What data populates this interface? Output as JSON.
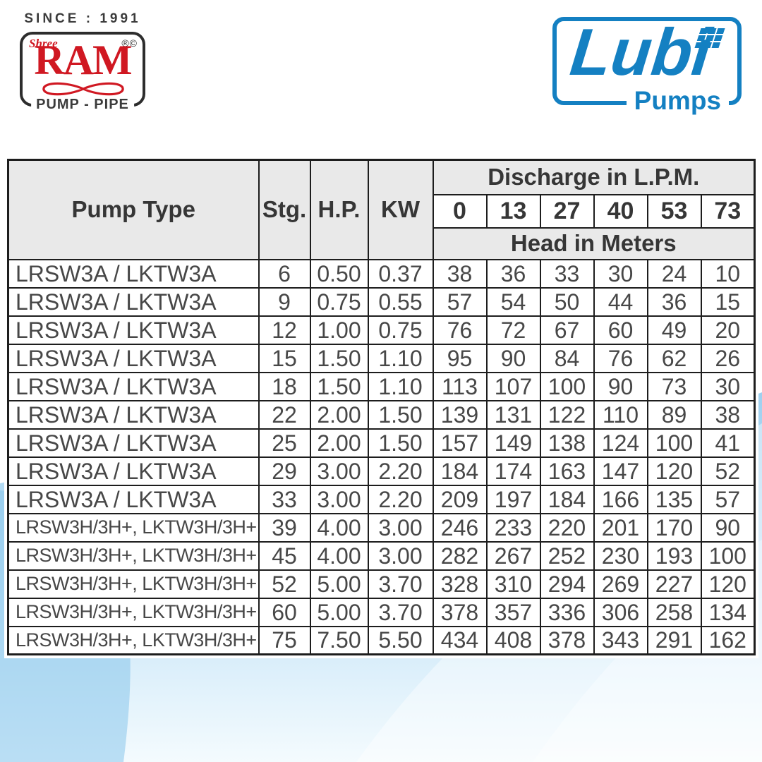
{
  "branding": {
    "ram": {
      "since": "SINCE : 1991",
      "shree": "Shree",
      "name": "RAM",
      "marks": "®©",
      "tagline": "PUMP - PIPE",
      "brand_red": "#d01822",
      "text_dark": "#3b3b3b"
    },
    "lubi": {
      "name": "Lubi",
      "subtitle": "Pumps",
      "brand_blue": "#1480c2"
    }
  },
  "table": {
    "headers": {
      "pump_type": "Pump Type",
      "stg": "Stg.",
      "hp": "H.P.",
      "kw": "KW",
      "discharge": "Discharge in L.P.M.",
      "head": "Head in Meters"
    },
    "discharge_values": [
      "0",
      "13",
      "27",
      "40",
      "53",
      "73"
    ],
    "rows": [
      {
        "pump": "LRSW3A / LKTW3A",
        "stg": "6",
        "hp": "0.50",
        "kw": "0.37",
        "heads": [
          "38",
          "36",
          "33",
          "30",
          "24",
          "10"
        ]
      },
      {
        "pump": "LRSW3A / LKTW3A",
        "stg": "9",
        "hp": "0.75",
        "kw": "0.55",
        "heads": [
          "57",
          "54",
          "50",
          "44",
          "36",
          "15"
        ]
      },
      {
        "pump": "LRSW3A / LKTW3A",
        "stg": "12",
        "hp": "1.00",
        "kw": "0.75",
        "heads": [
          "76",
          "72",
          "67",
          "60",
          "49",
          "20"
        ]
      },
      {
        "pump": "LRSW3A / LKTW3A",
        "stg": "15",
        "hp": "1.50",
        "kw": "1.10",
        "heads": [
          "95",
          "90",
          "84",
          "76",
          "62",
          "26"
        ]
      },
      {
        "pump": "LRSW3A / LKTW3A",
        "stg": "18",
        "hp": "1.50",
        "kw": "1.10",
        "heads": [
          "113",
          "107",
          "100",
          "90",
          "73",
          "30"
        ]
      },
      {
        "pump": "LRSW3A / LKTW3A",
        "stg": "22",
        "hp": "2.00",
        "kw": "1.50",
        "heads": [
          "139",
          "131",
          "122",
          "110",
          "89",
          "38"
        ]
      },
      {
        "pump": "LRSW3A / LKTW3A",
        "stg": "25",
        "hp": "2.00",
        "kw": "1.50",
        "heads": [
          "157",
          "149",
          "138",
          "124",
          "100",
          "41"
        ]
      },
      {
        "pump": "LRSW3A / LKTW3A",
        "stg": "29",
        "hp": "3.00",
        "kw": "2.20",
        "heads": [
          "184",
          "174",
          "163",
          "147",
          "120",
          "52"
        ]
      },
      {
        "pump": "LRSW3A / LKTW3A",
        "stg": "33",
        "hp": "3.00",
        "kw": "2.20",
        "heads": [
          "209",
          "197",
          "184",
          "166",
          "135",
          "57"
        ]
      },
      {
        "pump": "LRSW3H/3H+, LKTW3H/3H+",
        "stg": "39",
        "hp": "4.00",
        "kw": "3.00",
        "heads": [
          "246",
          "233",
          "220",
          "201",
          "170",
          "90"
        ]
      },
      {
        "pump": "LRSW3H/3H+, LKTW3H/3H+",
        "stg": "45",
        "hp": "4.00",
        "kw": "3.00",
        "heads": [
          "282",
          "267",
          "252",
          "230",
          "193",
          "100"
        ]
      },
      {
        "pump": "LRSW3H/3H+, LKTW3H/3H+",
        "stg": "52",
        "hp": "5.00",
        "kw": "3.70",
        "heads": [
          "328",
          "310",
          "294",
          "269",
          "227",
          "120"
        ]
      },
      {
        "pump": "LRSW3H/3H+, LKTW3H/3H+",
        "stg": "60",
        "hp": "5.00",
        "kw": "3.70",
        "heads": [
          "378",
          "357",
          "336",
          "306",
          "258",
          "134"
        ]
      },
      {
        "pump": "LRSW3H/3H+, LKTW3H/3H+",
        "stg": "75",
        "hp": "7.50",
        "kw": "5.50",
        "heads": [
          "434",
          "408",
          "378",
          "343",
          "291",
          "162"
        ]
      }
    ]
  },
  "colors": {
    "table_border": "#1d1d1d",
    "header_bg": "#e9e9e9",
    "header_text": "#363636",
    "body_text": "#474747",
    "wave_blue": "#9ed0ef"
  }
}
